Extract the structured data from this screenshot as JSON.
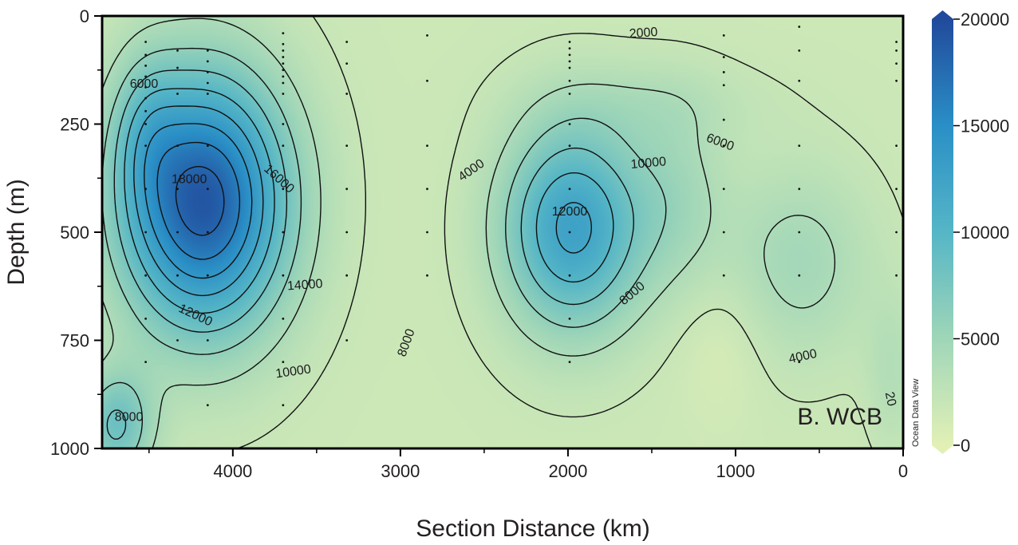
{
  "chart_data": {
    "type": "heatmap",
    "panel_label": "B. WCB",
    "watermark": "Ocean Data View",
    "xlabel": "Section Distance (km)",
    "ylabel": "Depth (m)",
    "xlim": [
      4780,
      0
    ],
    "ylim": [
      0,
      1000
    ],
    "x_reversed": true,
    "y_reversed": true,
    "x_ticks": [
      4000,
      3000,
      2000,
      1000,
      0
    ],
    "y_ticks": [
      0,
      250,
      500,
      750,
      1000
    ],
    "x_tick_labels": [
      "4000",
      "3000",
      "2000",
      "1000",
      "0"
    ],
    "y_tick_labels": [
      "0",
      "250",
      "500",
      "750",
      "1000"
    ],
    "colorbar": {
      "min": 0,
      "max": 20000,
      "ticks": [
        0,
        5000,
        10000,
        15000,
        20000
      ],
      "tick_labels": [
        "0",
        "5000",
        "10000",
        "15000",
        "20000"
      ],
      "colors": [
        "#e2f0b6",
        "#9fd6b8",
        "#55b6c6",
        "#2a8fc6",
        "#214a9c"
      ]
    },
    "field_maxima": [
      {
        "x": 4150,
        "depth": 430,
        "value": 19000
      },
      {
        "x": 1980,
        "depth": 500,
        "value": 12800
      },
      {
        "x": 4520,
        "depth": 255,
        "value": 14500
      }
    ],
    "contour_levels": [
      2000,
      4000,
      6000,
      8000,
      10000,
      12000,
      14000,
      16000,
      18000
    ],
    "contour_labels": [
      {
        "text": "2000",
        "x": 1550,
        "depth": 37,
        "angle": -4
      },
      {
        "text": "6000",
        "x": 4530,
        "depth": 155,
        "angle": 0
      },
      {
        "text": "4000",
        "x": 2580,
        "depth": 355,
        "angle": -35
      },
      {
        "text": "6000",
        "x": 1090,
        "depth": 290,
        "angle": 20
      },
      {
        "text": "10000",
        "x": 1520,
        "depth": 338,
        "angle": -5
      },
      {
        "text": "18000",
        "x": 4260,
        "depth": 375,
        "angle": 0
      },
      {
        "text": "16000",
        "x": 3720,
        "depth": 375,
        "angle": 42
      },
      {
        "text": "12000",
        "x": 1990,
        "depth": 450,
        "angle": 0
      },
      {
        "text": "14000",
        "x": 3570,
        "depth": 620,
        "angle": -4
      },
      {
        "text": "8000",
        "x": 1620,
        "depth": 640,
        "angle": -40
      },
      {
        "text": "12000",
        "x": 4220,
        "depth": 690,
        "angle": 25
      },
      {
        "text": "8000",
        "x": 2970,
        "depth": 755,
        "angle": -70
      },
      {
        "text": "4000",
        "x": 600,
        "depth": 785,
        "angle": -12
      },
      {
        "text": "10000",
        "x": 3640,
        "depth": 820,
        "angle": -8
      },
      {
        "text": "8000",
        "x": 4620,
        "depth": 925,
        "angle": 0
      },
      {
        "text": "20",
        "x": 70,
        "depth": 885,
        "angle": 78
      }
    ],
    "stations": [
      {
        "x": 4520,
        "depths": [
          60,
          90,
          115,
          140,
          165,
          190,
          220,
          250,
          300,
          400,
          500,
          600,
          700,
          800
        ]
      },
      {
        "x": 4330,
        "depths": [
          80,
          120,
          180,
          300,
          400,
          500,
          600,
          750
        ]
      },
      {
        "x": 4150,
        "depths": [
          80,
          105,
          130,
          155,
          180,
          300,
          400,
          500,
          600,
          750,
          900
        ]
      },
      {
        "x": 3700,
        "depths": [
          40,
          65,
          80,
          95,
          110,
          125,
          140,
          155,
          180,
          250,
          300,
          400,
          500,
          600,
          700,
          800,
          900
        ]
      },
      {
        "x": 3320,
        "depths": [
          60,
          110,
          180,
          300,
          400,
          500,
          600,
          750
        ]
      },
      {
        "x": 2840,
        "depths": [
          45,
          150,
          300,
          400,
          500,
          600
        ]
      },
      {
        "x": 1990,
        "depths": [
          60,
          75,
          90,
          105,
          120,
          150,
          180,
          250,
          300,
          400,
          500,
          600,
          700,
          800
        ]
      },
      {
        "x": 1070,
        "depths": [
          45,
          95,
          130,
          160,
          240,
          300,
          400,
          500,
          600
        ]
      },
      {
        "x": 620,
        "depths": [
          25,
          80,
          150,
          300,
          400,
          500,
          600,
          800
        ]
      },
      {
        "x": 40,
        "depths": [
          60,
          80,
          110,
          150,
          300,
          400,
          500,
          600
        ]
      }
    ]
  }
}
